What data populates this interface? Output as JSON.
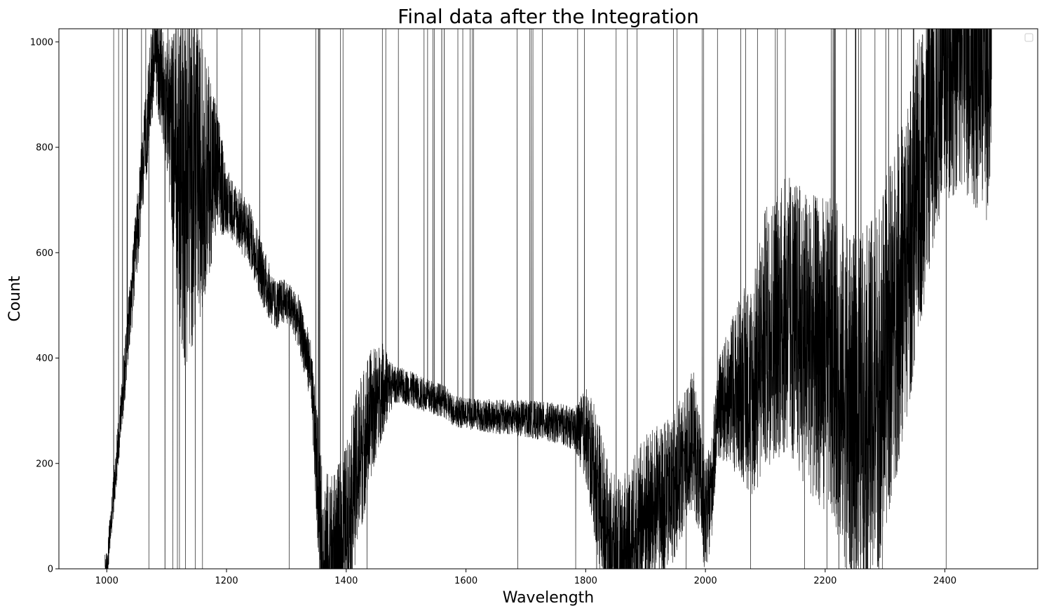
{
  "chart_data": {
    "type": "line",
    "title": "Final data after the Integration",
    "xlabel": "Wavelength",
    "ylabel": "Count",
    "xlim": [
      920,
      2555
    ],
    "ylim": [
      0,
      1025
    ],
    "xticks": [
      1000,
      1200,
      1400,
      1600,
      1800,
      2000,
      2200,
      2400
    ],
    "yticks": [
      0,
      200,
      400,
      600,
      800,
      1000
    ],
    "grid": false,
    "legend": {
      "placement": "top-right",
      "entries": []
    },
    "series": [
      {
        "color": "#000000",
        "x_range": [
          997,
          2478
        ],
        "baseline": [
          [
            997,
            0
          ],
          [
            1000,
            0
          ],
          [
            1080,
            1000
          ],
          [
            1100,
            880
          ],
          [
            1120,
            760
          ],
          [
            1150,
            740
          ],
          [
            1180,
            760
          ],
          [
            1200,
            700
          ],
          [
            1240,
            630
          ],
          [
            1260,
            560
          ],
          [
            1280,
            500
          ],
          [
            1300,
            510
          ],
          [
            1320,
            470
          ],
          [
            1340,
            380
          ],
          [
            1360,
            30
          ],
          [
            1380,
            20
          ],
          [
            1400,
            80
          ],
          [
            1420,
            200
          ],
          [
            1440,
            290
          ],
          [
            1460,
            340
          ],
          [
            1480,
            350
          ],
          [
            1500,
            345
          ],
          [
            1530,
            330
          ],
          [
            1560,
            320
          ],
          [
            1580,
            300
          ],
          [
            1600,
            295
          ],
          [
            1640,
            290
          ],
          [
            1700,
            285
          ],
          [
            1760,
            275
          ],
          [
            1800,
            255
          ],
          [
            1820,
            160
          ],
          [
            1840,
            40
          ],
          [
            1860,
            20
          ],
          [
            1880,
            60
          ],
          [
            1900,
            100
          ],
          [
            1940,
            140
          ],
          [
            1960,
            190
          ],
          [
            1980,
            250
          ],
          [
            2000,
            90
          ],
          [
            2010,
            150
          ],
          [
            2020,
            300
          ],
          [
            2040,
            330
          ],
          [
            2060,
            350
          ],
          [
            2080,
            340
          ],
          [
            2100,
            440
          ],
          [
            2120,
            470
          ],
          [
            2140,
            480
          ],
          [
            2160,
            450
          ],
          [
            2180,
            420
          ],
          [
            2200,
            410
          ],
          [
            2220,
            380
          ],
          [
            2240,
            300
          ],
          [
            2260,
            300
          ],
          [
            2280,
            310
          ],
          [
            2300,
            400
          ],
          [
            2320,
            500
          ],
          [
            2340,
            600
          ],
          [
            2360,
            750
          ],
          [
            2380,
            880
          ],
          [
            2400,
            950
          ],
          [
            2420,
            1000
          ],
          [
            2440,
            1000
          ],
          [
            2460,
            1000
          ],
          [
            2478,
            1000
          ]
        ],
        "noise_profile": [
          [
            997,
            30
          ],
          [
            1100,
            120
          ],
          [
            1130,
            380
          ],
          [
            1160,
            250
          ],
          [
            1200,
            60
          ],
          [
            1260,
            60
          ],
          [
            1300,
            40
          ],
          [
            1340,
            60
          ],
          [
            1360,
            160
          ],
          [
            1420,
            160
          ],
          [
            1460,
            90
          ],
          [
            1480,
            35
          ],
          [
            1600,
            30
          ],
          [
            1780,
            40
          ],
          [
            1820,
            140
          ],
          [
            1900,
            160
          ],
          [
            1980,
            130
          ],
          [
            2020,
            90
          ],
          [
            2060,
            180
          ],
          [
            2100,
            250
          ],
          [
            2200,
            300
          ],
          [
            2280,
            360
          ],
          [
            2340,
            300
          ],
          [
            2400,
            260
          ],
          [
            2478,
            350
          ]
        ]
      }
    ]
  }
}
